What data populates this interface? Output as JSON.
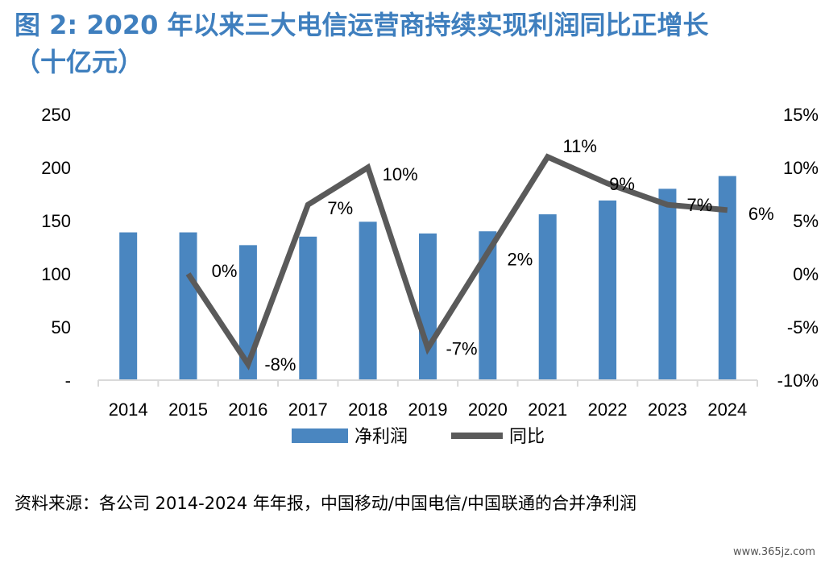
{
  "title": {
    "line1": "图 2: 2020 年以来三大电信运营商持续实现利润同比正增长",
    "line2": "（十亿元）"
  },
  "source_note": "资料来源：各公司 2014-2024 年年报，中国移动/中国电信/中国联通的合并净利润",
  "watermark": "www.365jz.com",
  "colors": {
    "bar": "#4a86c0",
    "line": "#5a5a5a",
    "title": "#3f7fbe",
    "axis": "#d9d9d9"
  },
  "chart_data": {
    "type": "bar+line",
    "categories": [
      "2014",
      "2015",
      "2016",
      "2017",
      "2018",
      "2019",
      "2020",
      "2021",
      "2022",
      "2023",
      "2024"
    ],
    "series": [
      {
        "name": "净利润",
        "type": "bar",
        "axis": "left",
        "values": [
          139,
          139,
          127,
          135,
          149,
          138,
          140,
          156,
          169,
          180,
          192
        ]
      },
      {
        "name": "同比",
        "type": "line",
        "axis": "right",
        "values": [
          null,
          0,
          -8.5,
          6.5,
          10,
          -7,
          2,
          11,
          8.5,
          6.5,
          6
        ]
      }
    ],
    "data_labels": [
      {
        "index": 1,
        "text": "0%"
      },
      {
        "index": 2,
        "text": "-8%"
      },
      {
        "index": 3,
        "text": "7%"
      },
      {
        "index": 4,
        "text": "10%"
      },
      {
        "index": 5,
        "text": "-7%"
      },
      {
        "index": 6,
        "text": "2%"
      },
      {
        "index": 7,
        "text": "11%"
      },
      {
        "index": 8,
        "text": "9%"
      },
      {
        "index": 9,
        "text": "7%"
      },
      {
        "index": 10,
        "text": "6%"
      }
    ],
    "y_left": {
      "ylim": [
        0,
        250
      ],
      "ticks": [
        0,
        50,
        100,
        150,
        200,
        250
      ],
      "tick_labels": [
        "-",
        "50",
        "100",
        "150",
        "200",
        "250"
      ]
    },
    "y_right": {
      "ylim": [
        -10,
        15
      ],
      "ticks": [
        -10,
        -5,
        0,
        5,
        10,
        15
      ],
      "tick_labels": [
        "-10%",
        "-5%",
        "0%",
        "5%",
        "10%",
        "15%"
      ]
    },
    "grid": false,
    "legend": {
      "placement": "bottom-center",
      "entries": [
        "净利润",
        "同比"
      ]
    }
  }
}
